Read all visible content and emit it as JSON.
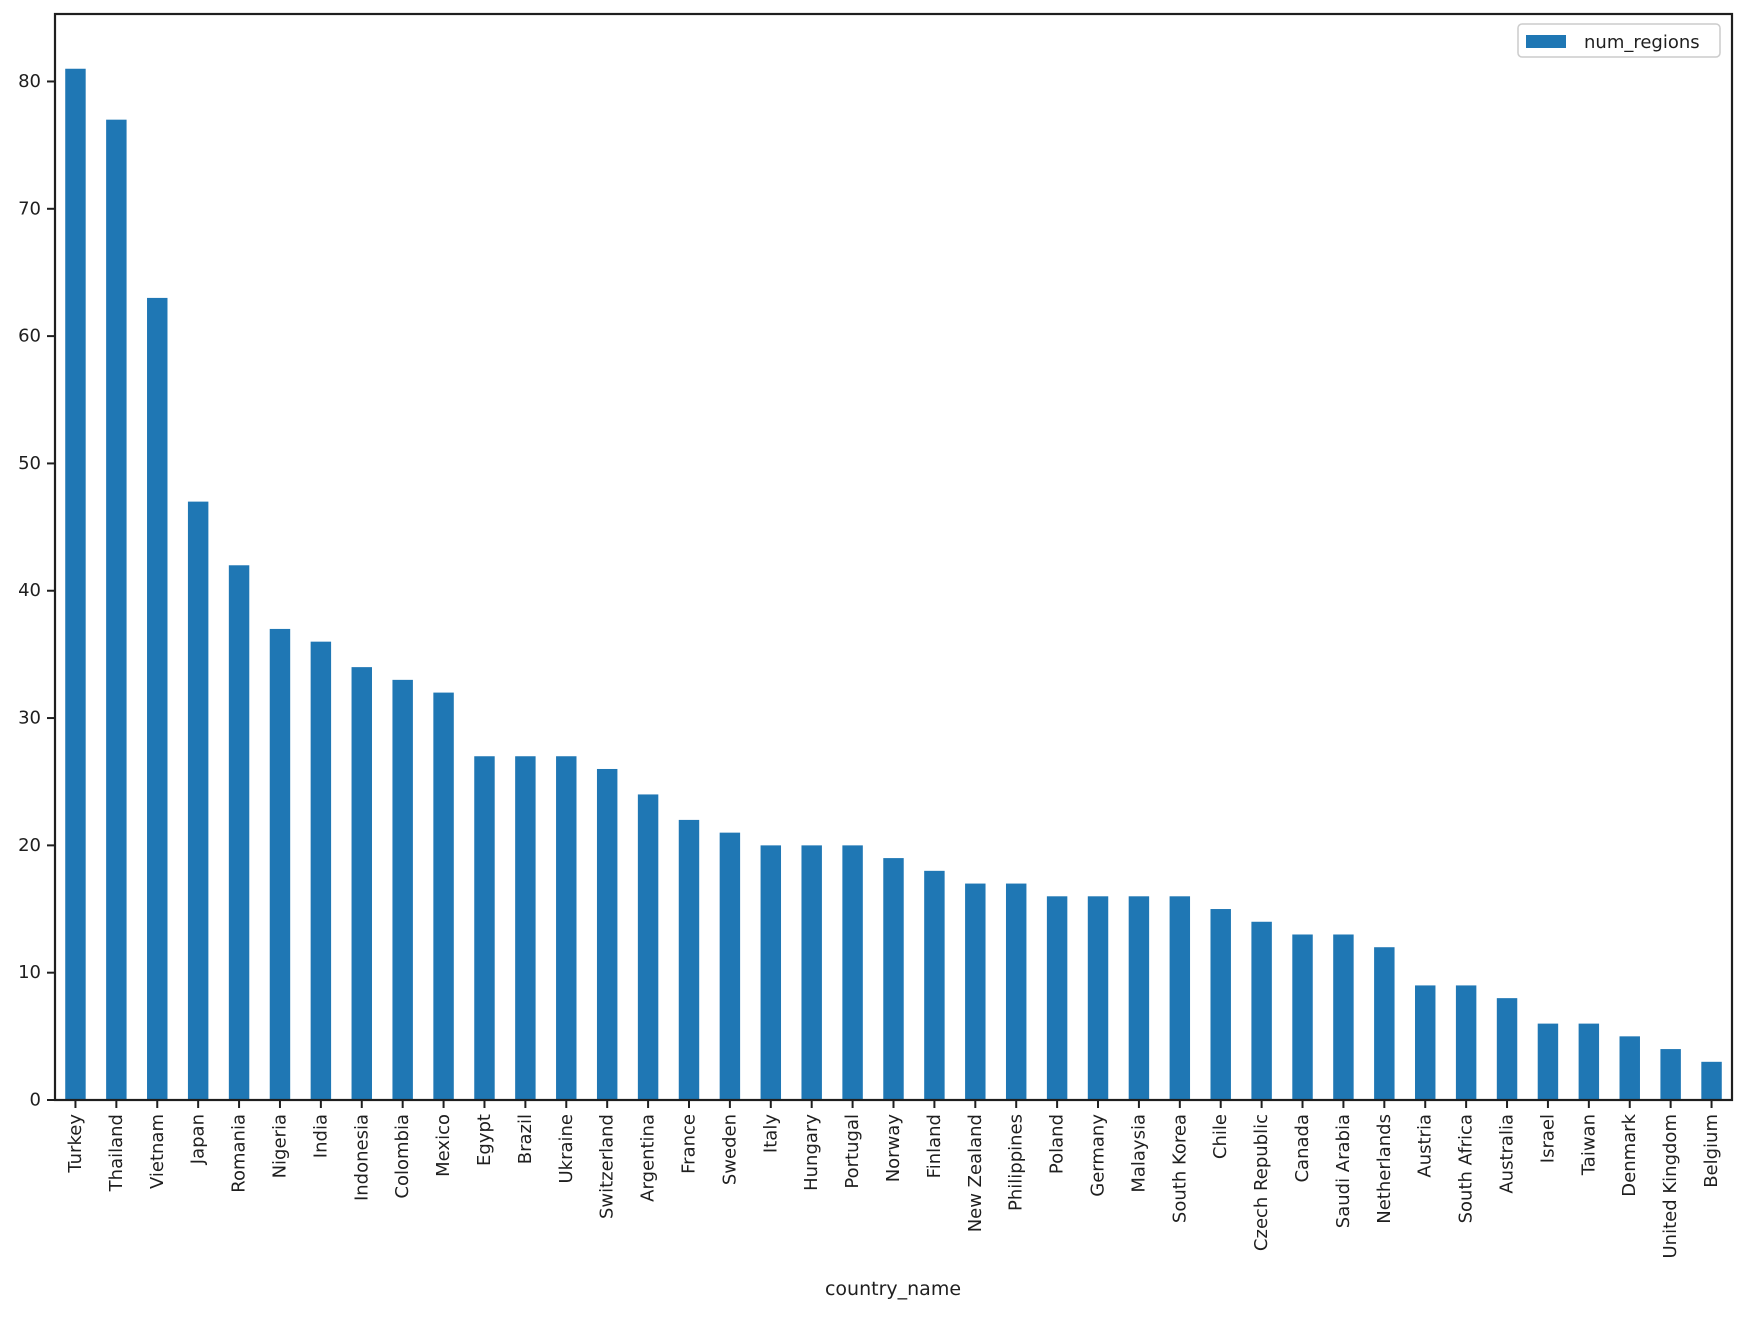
{
  "chart_data": {
    "type": "bar",
    "title": "",
    "xlabel": "country_name",
    "ylabel": "",
    "series_name": "num_regions",
    "categories": [
      "Turkey",
      "Thailand",
      "Vietnam",
      "Japan",
      "Romania",
      "Nigeria",
      "India",
      "Indonesia",
      "Colombia",
      "Mexico",
      "Egypt",
      "Brazil",
      "Ukraine",
      "Switzerland",
      "Argentina",
      "France",
      "Sweden",
      "Italy",
      "Hungary",
      "Portugal",
      "Norway",
      "Finland",
      "New Zealand",
      "Philippines",
      "Poland",
      "Germany",
      "Malaysia",
      "South Korea",
      "Chile",
      "Czech Republic",
      "Canada",
      "Saudi Arabia",
      "Netherlands",
      "Austria",
      "South Africa",
      "Australia",
      "Israel",
      "Taiwan",
      "Denmark",
      "United Kingdom",
      "Belgium"
    ],
    "values": [
      81,
      77,
      63,
      47,
      42,
      37,
      36,
      34,
      33,
      32,
      27,
      27,
      27,
      26,
      24,
      22,
      21,
      20,
      20,
      20,
      19,
      18,
      17,
      17,
      16,
      16,
      16,
      16,
      15,
      14,
      13,
      13,
      12,
      9,
      9,
      8,
      6,
      6,
      5,
      4,
      3
    ],
    "ylim": [
      0,
      85.3
    ],
    "yticks": [
      0,
      10,
      20,
      30,
      40,
      50,
      60,
      70,
      80
    ],
    "x_tick_rotation": 90,
    "grid": false,
    "legend_position": "upper right",
    "bar_color": "#1f77b4",
    "axis_color": "#1f1f1f"
  }
}
